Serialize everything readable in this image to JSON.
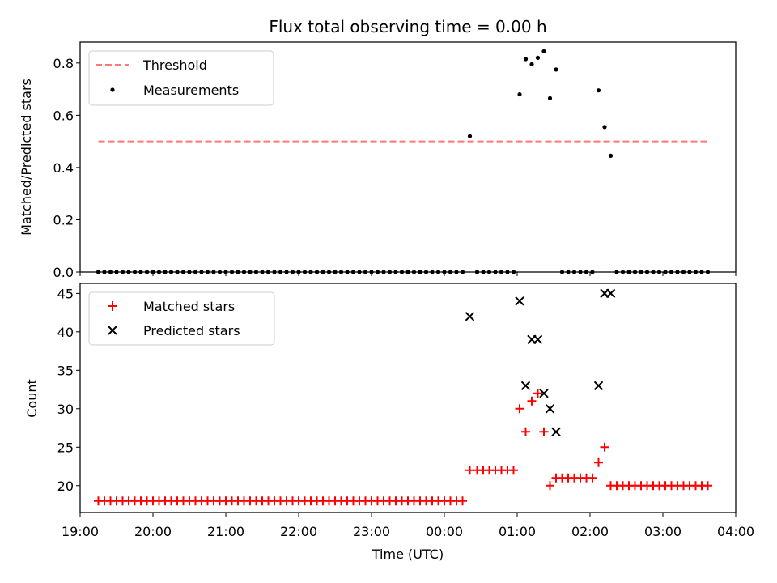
{
  "chart_data": [
    {
      "type": "scatter",
      "title": "Flux total observing time = 0.00 h",
      "ylabel": "Matched/Predicted stars",
      "xlabel": "",
      "xlim": [
        "19:00",
        "04:00"
      ],
      "ylim": [
        0,
        0.88
      ],
      "y_ticks": [
        "0.0",
        "0.2",
        "0.4",
        "0.6",
        "0.8"
      ],
      "legend_position": "upper-left",
      "grid": false,
      "threshold": {
        "name": "Threshold",
        "value": 0.5,
        "x_range": [
          "19:15",
          "03:37"
        ],
        "color": "#ff7777",
        "style": "dashed"
      },
      "series": [
        {
          "name": "Measurements",
          "color": "#000000",
          "marker": "dot",
          "points": [
            {
              "x": "19:15",
              "y": 0
            },
            {
              "x": "19:20",
              "y": 0
            },
            {
              "x": "19:25",
              "y": 0
            },
            {
              "x": "19:30",
              "y": 0
            },
            {
              "x": "19:35",
              "y": 0
            },
            {
              "x": "19:40",
              "y": 0
            },
            {
              "x": "19:45",
              "y": 0
            },
            {
              "x": "19:50",
              "y": 0
            },
            {
              "x": "19:55",
              "y": 0
            },
            {
              "x": "20:00",
              "y": 0
            },
            {
              "x": "20:05",
              "y": 0
            },
            {
              "x": "20:10",
              "y": 0
            },
            {
              "x": "20:15",
              "y": 0
            },
            {
              "x": "20:20",
              "y": 0
            },
            {
              "x": "20:25",
              "y": 0
            },
            {
              "x": "20:30",
              "y": 0
            },
            {
              "x": "20:35",
              "y": 0
            },
            {
              "x": "20:40",
              "y": 0
            },
            {
              "x": "20:45",
              "y": 0
            },
            {
              "x": "20:50",
              "y": 0
            },
            {
              "x": "20:55",
              "y": 0
            },
            {
              "x": "21:00",
              "y": 0
            },
            {
              "x": "21:05",
              "y": 0
            },
            {
              "x": "21:10",
              "y": 0
            },
            {
              "x": "21:15",
              "y": 0
            },
            {
              "x": "21:20",
              "y": 0
            },
            {
              "x": "21:25",
              "y": 0
            },
            {
              "x": "21:30",
              "y": 0
            },
            {
              "x": "21:35",
              "y": 0
            },
            {
              "x": "21:40",
              "y": 0
            },
            {
              "x": "21:45",
              "y": 0
            },
            {
              "x": "21:50",
              "y": 0
            },
            {
              "x": "21:55",
              "y": 0
            },
            {
              "x": "22:00",
              "y": 0
            },
            {
              "x": "22:05",
              "y": 0
            },
            {
              "x": "22:10",
              "y": 0
            },
            {
              "x": "22:15",
              "y": 0
            },
            {
              "x": "22:20",
              "y": 0
            },
            {
              "x": "22:25",
              "y": 0
            },
            {
              "x": "22:30",
              "y": 0
            },
            {
              "x": "22:35",
              "y": 0
            },
            {
              "x": "22:40",
              "y": 0
            },
            {
              "x": "22:45",
              "y": 0
            },
            {
              "x": "22:50",
              "y": 0
            },
            {
              "x": "22:55",
              "y": 0
            },
            {
              "x": "23:00",
              "y": 0
            },
            {
              "x": "23:05",
              "y": 0
            },
            {
              "x": "23:10",
              "y": 0
            },
            {
              "x": "23:15",
              "y": 0
            },
            {
              "x": "23:20",
              "y": 0
            },
            {
              "x": "23:25",
              "y": 0
            },
            {
              "x": "23:30",
              "y": 0
            },
            {
              "x": "23:35",
              "y": 0
            },
            {
              "x": "23:40",
              "y": 0
            },
            {
              "x": "23:45",
              "y": 0
            },
            {
              "x": "23:50",
              "y": 0
            },
            {
              "x": "23:55",
              "y": 0
            },
            {
              "x": "00:00",
              "y": 0
            },
            {
              "x": "00:05",
              "y": 0
            },
            {
              "x": "00:10",
              "y": 0
            },
            {
              "x": "00:15",
              "y": 0
            },
            {
              "x": "00:21",
              "y": 0.52
            },
            {
              "x": "00:27",
              "y": 0
            },
            {
              "x": "00:32",
              "y": 0
            },
            {
              "x": "00:37",
              "y": 0
            },
            {
              "x": "00:42",
              "y": 0
            },
            {
              "x": "00:47",
              "y": 0
            },
            {
              "x": "00:52",
              "y": 0
            },
            {
              "x": "00:57",
              "y": 0
            },
            {
              "x": "01:02",
              "y": 0.68
            },
            {
              "x": "01:07",
              "y": 0.815
            },
            {
              "x": "01:12",
              "y": 0.795
            },
            {
              "x": "01:17",
              "y": 0.82
            },
            {
              "x": "01:22",
              "y": 0.845
            },
            {
              "x": "01:27",
              "y": 0.665
            },
            {
              "x": "01:32",
              "y": 0.775
            },
            {
              "x": "01:37",
              "y": 0
            },
            {
              "x": "01:42",
              "y": 0
            },
            {
              "x": "01:47",
              "y": 0
            },
            {
              "x": "01:52",
              "y": 0
            },
            {
              "x": "01:57",
              "y": 0
            },
            {
              "x": "02:02",
              "y": 0
            },
            {
              "x": "02:07",
              "y": 0.695
            },
            {
              "x": "02:12",
              "y": 0.555
            },
            {
              "x": "02:17",
              "y": 0.445
            },
            {
              "x": "02:22",
              "y": 0
            },
            {
              "x": "02:27",
              "y": 0
            },
            {
              "x": "02:32",
              "y": 0
            },
            {
              "x": "02:37",
              "y": 0
            },
            {
              "x": "02:42",
              "y": 0
            },
            {
              "x": "02:47",
              "y": 0
            },
            {
              "x": "02:52",
              "y": 0
            },
            {
              "x": "02:57",
              "y": 0
            },
            {
              "x": "03:02",
              "y": 0
            },
            {
              "x": "03:07",
              "y": 0
            },
            {
              "x": "03:12",
              "y": 0
            },
            {
              "x": "03:17",
              "y": 0
            },
            {
              "x": "03:22",
              "y": 0
            },
            {
              "x": "03:27",
              "y": 0
            },
            {
              "x": "03:32",
              "y": 0
            },
            {
              "x": "03:37",
              "y": 0
            }
          ]
        }
      ]
    },
    {
      "type": "scatter",
      "title": "",
      "xlabel": "Time (UTC)",
      "ylabel": "Count",
      "xlim": [
        "19:00",
        "04:00"
      ],
      "ylim": [
        16.5,
        46.3
      ],
      "x_ticks": [
        "19:00",
        "20:00",
        "21:00",
        "22:00",
        "23:00",
        "00:00",
        "01:00",
        "02:00",
        "03:00",
        "04:00"
      ],
      "y_ticks": [
        "20",
        "25",
        "30",
        "35",
        "40",
        "45"
      ],
      "legend_position": "upper-left",
      "grid": false,
      "series": [
        {
          "name": "Matched stars",
          "color": "#ff0000",
          "marker": "plus",
          "points": [
            {
              "x": "19:15",
              "y": 18
            },
            {
              "x": "19:20",
              "y": 18
            },
            {
              "x": "19:25",
              "y": 18
            },
            {
              "x": "19:30",
              "y": 18
            },
            {
              "x": "19:35",
              "y": 18
            },
            {
              "x": "19:40",
              "y": 18
            },
            {
              "x": "19:45",
              "y": 18
            },
            {
              "x": "19:50",
              "y": 18
            },
            {
              "x": "19:55",
              "y": 18
            },
            {
              "x": "20:00",
              "y": 18
            },
            {
              "x": "20:05",
              "y": 18
            },
            {
              "x": "20:10",
              "y": 18
            },
            {
              "x": "20:15",
              "y": 18
            },
            {
              "x": "20:20",
              "y": 18
            },
            {
              "x": "20:25",
              "y": 18
            },
            {
              "x": "20:30",
              "y": 18
            },
            {
              "x": "20:35",
              "y": 18
            },
            {
              "x": "20:40",
              "y": 18
            },
            {
              "x": "20:45",
              "y": 18
            },
            {
              "x": "20:50",
              "y": 18
            },
            {
              "x": "20:55",
              "y": 18
            },
            {
              "x": "21:00",
              "y": 18
            },
            {
              "x": "21:05",
              "y": 18
            },
            {
              "x": "21:10",
              "y": 18
            },
            {
              "x": "21:15",
              "y": 18
            },
            {
              "x": "21:20",
              "y": 18
            },
            {
              "x": "21:25",
              "y": 18
            },
            {
              "x": "21:30",
              "y": 18
            },
            {
              "x": "21:35",
              "y": 18
            },
            {
              "x": "21:40",
              "y": 18
            },
            {
              "x": "21:45",
              "y": 18
            },
            {
              "x": "21:50",
              "y": 18
            },
            {
              "x": "21:55",
              "y": 18
            },
            {
              "x": "22:00",
              "y": 18
            },
            {
              "x": "22:05",
              "y": 18
            },
            {
              "x": "22:10",
              "y": 18
            },
            {
              "x": "22:15",
              "y": 18
            },
            {
              "x": "22:20",
              "y": 18
            },
            {
              "x": "22:25",
              "y": 18
            },
            {
              "x": "22:30",
              "y": 18
            },
            {
              "x": "22:35",
              "y": 18
            },
            {
              "x": "22:40",
              "y": 18
            },
            {
              "x": "22:45",
              "y": 18
            },
            {
              "x": "22:50",
              "y": 18
            },
            {
              "x": "22:55",
              "y": 18
            },
            {
              "x": "23:00",
              "y": 18
            },
            {
              "x": "23:05",
              "y": 18
            },
            {
              "x": "23:10",
              "y": 18
            },
            {
              "x": "23:15",
              "y": 18
            },
            {
              "x": "23:20",
              "y": 18
            },
            {
              "x": "23:25",
              "y": 18
            },
            {
              "x": "23:30",
              "y": 18
            },
            {
              "x": "23:35",
              "y": 18
            },
            {
              "x": "23:40",
              "y": 18
            },
            {
              "x": "23:45",
              "y": 18
            },
            {
              "x": "23:50",
              "y": 18
            },
            {
              "x": "23:55",
              "y": 18
            },
            {
              "x": "00:00",
              "y": 18
            },
            {
              "x": "00:05",
              "y": 18
            },
            {
              "x": "00:10",
              "y": 18
            },
            {
              "x": "00:15",
              "y": 18
            },
            {
              "x": "00:21",
              "y": 22
            },
            {
              "x": "00:27",
              "y": 22
            },
            {
              "x": "00:32",
              "y": 22
            },
            {
              "x": "00:37",
              "y": 22
            },
            {
              "x": "00:42",
              "y": 22
            },
            {
              "x": "00:47",
              "y": 22
            },
            {
              "x": "00:52",
              "y": 22
            },
            {
              "x": "00:57",
              "y": 22
            },
            {
              "x": "01:02",
              "y": 30
            },
            {
              "x": "01:07",
              "y": 27
            },
            {
              "x": "01:12",
              "y": 31
            },
            {
              "x": "01:17",
              "y": 32
            },
            {
              "x": "01:22",
              "y": 27
            },
            {
              "x": "01:27",
              "y": 20
            },
            {
              "x": "01:32",
              "y": 21
            },
            {
              "x": "01:37",
              "y": 21
            },
            {
              "x": "01:42",
              "y": 21
            },
            {
              "x": "01:47",
              "y": 21
            },
            {
              "x": "01:52",
              "y": 21
            },
            {
              "x": "01:57",
              "y": 21
            },
            {
              "x": "02:02",
              "y": 21
            },
            {
              "x": "02:07",
              "y": 23
            },
            {
              "x": "02:12",
              "y": 25
            },
            {
              "x": "02:17",
              "y": 20
            },
            {
              "x": "02:22",
              "y": 20
            },
            {
              "x": "02:27",
              "y": 20
            },
            {
              "x": "02:32",
              "y": 20
            },
            {
              "x": "02:37",
              "y": 20
            },
            {
              "x": "02:42",
              "y": 20
            },
            {
              "x": "02:47",
              "y": 20
            },
            {
              "x": "02:52",
              "y": 20
            },
            {
              "x": "02:57",
              "y": 20
            },
            {
              "x": "03:02",
              "y": 20
            },
            {
              "x": "03:07",
              "y": 20
            },
            {
              "x": "03:12",
              "y": 20
            },
            {
              "x": "03:17",
              "y": 20
            },
            {
              "x": "03:22",
              "y": 20
            },
            {
              "x": "03:27",
              "y": 20
            },
            {
              "x": "03:32",
              "y": 20
            },
            {
              "x": "03:37",
              "y": 20
            }
          ]
        },
        {
          "name": "Predicted stars",
          "color": "#000000",
          "marker": "x",
          "points": [
            {
              "x": "00:21",
              "y": 42
            },
            {
              "x": "01:02",
              "y": 44
            },
            {
              "x": "01:07",
              "y": 33
            },
            {
              "x": "01:12",
              "y": 39
            },
            {
              "x": "01:17",
              "y": 39
            },
            {
              "x": "01:22",
              "y": 32
            },
            {
              "x": "01:27",
              "y": 30
            },
            {
              "x": "01:32",
              "y": 27
            },
            {
              "x": "02:07",
              "y": 33
            },
            {
              "x": "02:12",
              "y": 45
            },
            {
              "x": "02:17",
              "y": 45
            }
          ]
        }
      ]
    }
  ]
}
